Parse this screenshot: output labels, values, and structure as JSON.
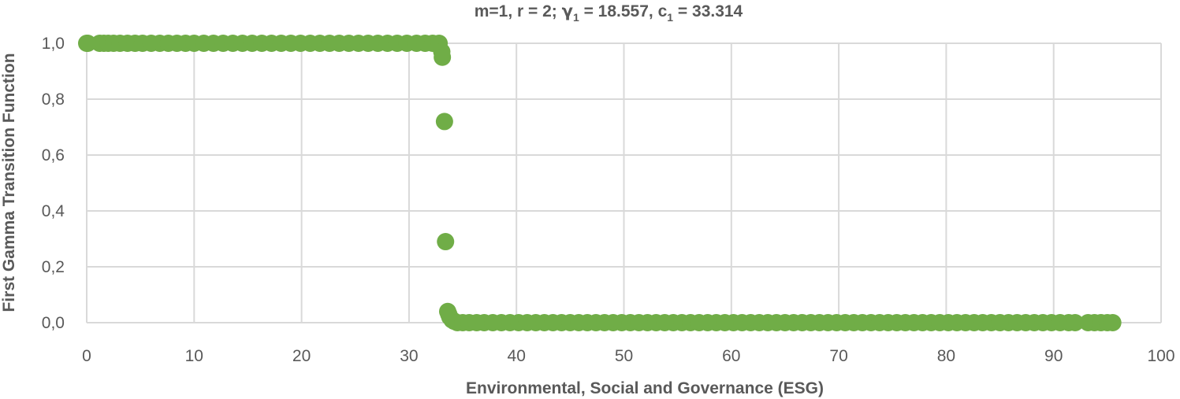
{
  "chart_data": {
    "type": "scatter",
    "title_parts": {
      "prefix": "m=1, r = 2; ",
      "gamma_symbol": "γ",
      "gamma_sub": "1",
      "gamma_value": " = 18.557, ",
      "c_symbol": "c",
      "c_sub": "1",
      "c_value": " = 33.314"
    },
    "xlabel": "Environmental, Social and Governance (ESG)",
    "ylabel": "First Gamma Transition Function",
    "xlim": [
      0,
      100
    ],
    "ylim": [
      0,
      1
    ],
    "x_ticks": [
      0,
      10,
      20,
      30,
      40,
      50,
      60,
      70,
      80,
      90,
      100
    ],
    "x_tick_labels": [
      "0",
      "10",
      "20",
      "30",
      "40",
      "50",
      "60",
      "70",
      "80",
      "90",
      "100"
    ],
    "y_ticks": [
      0,
      0.2,
      0.4,
      0.6,
      0.8,
      1.0
    ],
    "y_tick_labels": [
      "0,0",
      "0,2",
      "0,4",
      "0,6",
      "0,8",
      "1,0"
    ],
    "grid": true,
    "legend": "none",
    "marker_color": "#70ad47",
    "series": [
      {
        "points": [
          [
            0,
            1
          ],
          [
            0.1,
            1
          ],
          [
            1.2,
            1
          ],
          [
            1.6,
            1
          ],
          [
            2.0,
            1
          ],
          [
            2.5,
            1
          ],
          [
            3.1,
            1
          ],
          [
            3.8,
            1
          ],
          [
            4.5,
            1
          ],
          [
            5.2,
            1
          ],
          [
            6.0,
            1
          ],
          [
            6.8,
            1
          ],
          [
            7.6,
            1
          ],
          [
            8.4,
            1
          ],
          [
            9.2,
            1
          ],
          [
            10.0,
            1
          ],
          [
            10.9,
            1
          ],
          [
            11.8,
            1
          ],
          [
            12.7,
            1
          ],
          [
            13.6,
            1
          ],
          [
            14.5,
            1
          ],
          [
            15.4,
            1
          ],
          [
            16.3,
            1
          ],
          [
            17.2,
            1
          ],
          [
            18.1,
            1
          ],
          [
            19.0,
            1
          ],
          [
            19.9,
            1
          ],
          [
            20.8,
            1
          ],
          [
            21.7,
            1
          ],
          [
            22.6,
            1
          ],
          [
            23.5,
            1
          ],
          [
            24.4,
            1
          ],
          [
            25.3,
            1
          ],
          [
            26.2,
            1
          ],
          [
            27.1,
            1
          ],
          [
            28.0,
            1
          ],
          [
            28.9,
            1
          ],
          [
            29.8,
            1
          ],
          [
            30.7,
            1
          ],
          [
            31.5,
            1
          ],
          [
            32.2,
            1
          ],
          [
            32.8,
            1
          ],
          [
            33.05,
            0.97
          ],
          [
            33.1,
            0.95
          ],
          [
            33.3,
            0.72
          ],
          [
            33.4,
            0.29
          ],
          [
            33.6,
            0.04
          ],
          [
            33.7,
            0.03
          ],
          [
            33.8,
            0.02
          ],
          [
            34.0,
            0.01
          ],
          [
            34.2,
            0.005
          ],
          [
            34.5,
            0
          ],
          [
            35.0,
            0
          ],
          [
            35.6,
            0
          ],
          [
            36.3,
            0
          ],
          [
            37.0,
            0
          ],
          [
            37.8,
            0
          ],
          [
            38.6,
            0
          ],
          [
            39.4,
            0
          ],
          [
            40.2,
            0
          ],
          [
            41.0,
            0
          ],
          [
            41.8,
            0
          ],
          [
            42.6,
            0
          ],
          [
            43.4,
            0
          ],
          [
            44.2,
            0
          ],
          [
            45.0,
            0
          ],
          [
            45.8,
            0
          ],
          [
            46.6,
            0
          ],
          [
            47.4,
            0
          ],
          [
            48.2,
            0
          ],
          [
            49.0,
            0
          ],
          [
            49.8,
            0
          ],
          [
            50.6,
            0
          ],
          [
            51.4,
            0
          ],
          [
            52.2,
            0
          ],
          [
            53.0,
            0
          ],
          [
            53.8,
            0
          ],
          [
            54.6,
            0
          ],
          [
            55.4,
            0
          ],
          [
            56.2,
            0
          ],
          [
            57.0,
            0
          ],
          [
            57.8,
            0
          ],
          [
            58.6,
            0
          ],
          [
            59.4,
            0
          ],
          [
            60.2,
            0
          ],
          [
            61.0,
            0
          ],
          [
            61.8,
            0
          ],
          [
            62.6,
            0
          ],
          [
            63.4,
            0
          ],
          [
            64.2,
            0
          ],
          [
            65.0,
            0
          ],
          [
            65.8,
            0
          ],
          [
            66.6,
            0
          ],
          [
            67.4,
            0
          ],
          [
            68.2,
            0
          ],
          [
            69.0,
            0
          ],
          [
            69.8,
            0
          ],
          [
            70.6,
            0
          ],
          [
            71.4,
            0
          ],
          [
            72.2,
            0
          ],
          [
            73.0,
            0
          ],
          [
            73.8,
            0
          ],
          [
            74.6,
            0
          ],
          [
            75.4,
            0
          ],
          [
            76.2,
            0
          ],
          [
            77.0,
            0
          ],
          [
            77.8,
            0
          ],
          [
            78.6,
            0
          ],
          [
            79.4,
            0
          ],
          [
            80.2,
            0
          ],
          [
            81.0,
            0
          ],
          [
            81.8,
            0
          ],
          [
            82.6,
            0
          ],
          [
            83.4,
            0
          ],
          [
            84.2,
            0
          ],
          [
            85.0,
            0
          ],
          [
            85.8,
            0
          ],
          [
            86.6,
            0
          ],
          [
            87.4,
            0
          ],
          [
            88.2,
            0
          ],
          [
            89.0,
            0
          ],
          [
            89.8,
            0
          ],
          [
            90.6,
            0
          ],
          [
            91.4,
            0
          ],
          [
            92.0,
            0
          ],
          [
            93.2,
            0
          ],
          [
            93.8,
            0
          ],
          [
            94.4,
            0
          ],
          [
            95.0,
            0
          ],
          [
            95.5,
            0
          ]
        ]
      }
    ]
  }
}
